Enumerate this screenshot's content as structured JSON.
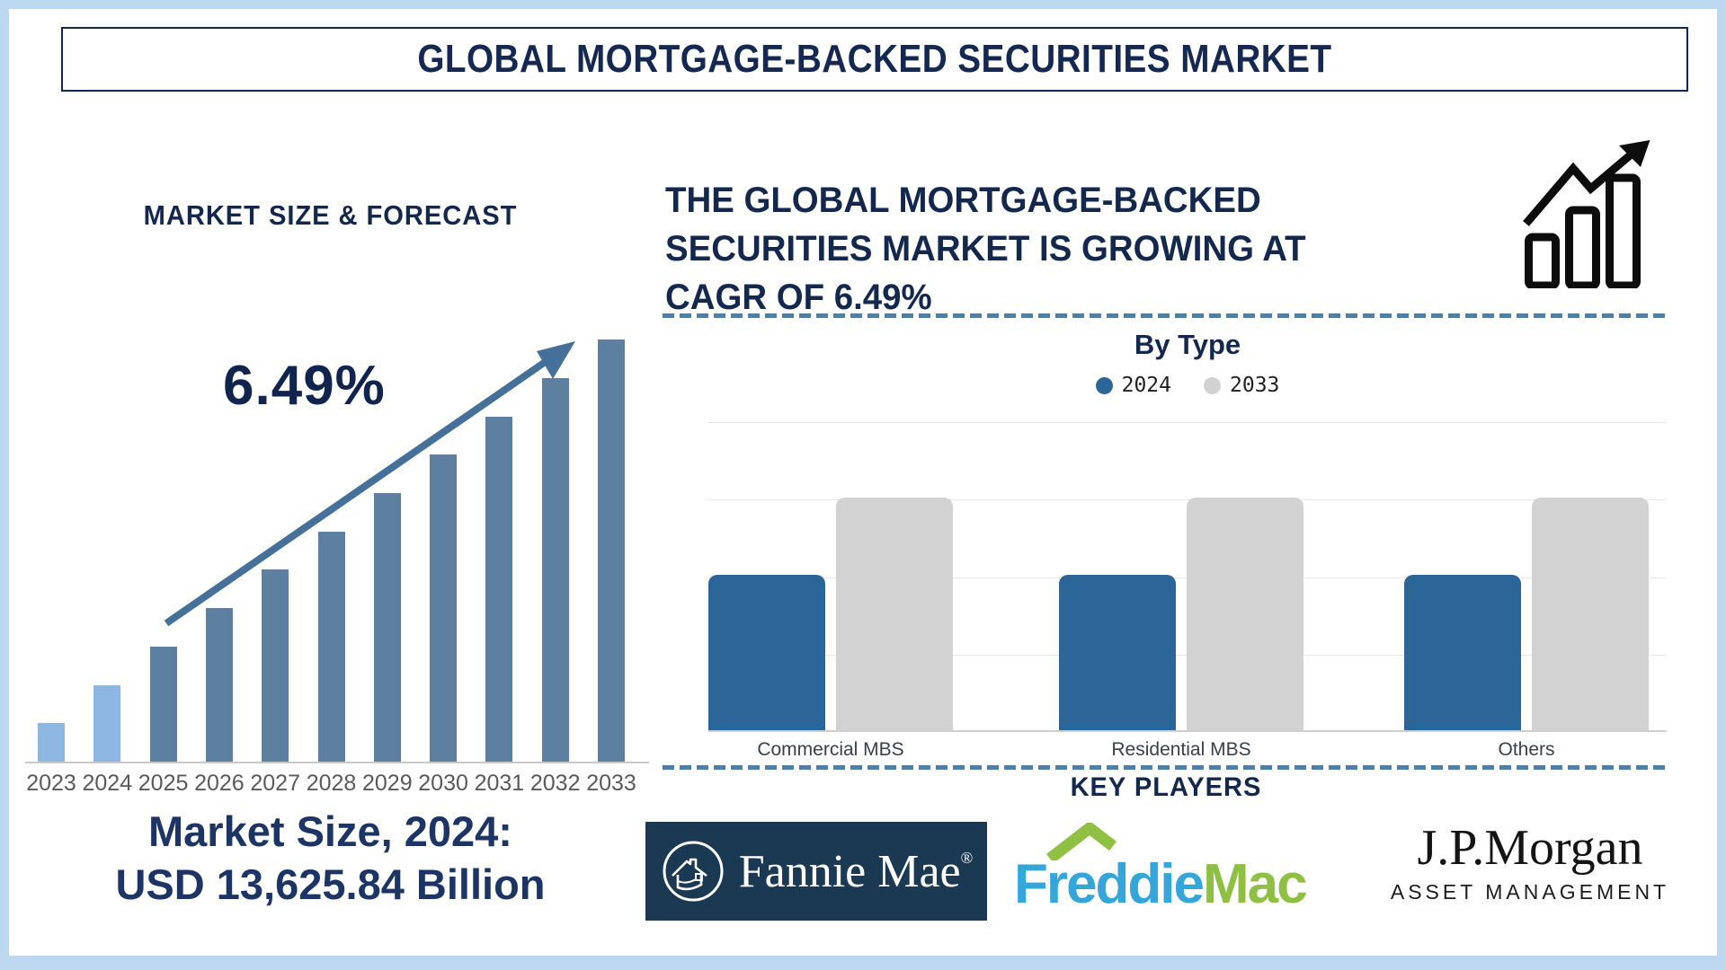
{
  "title": "GLOBAL MORTGAGE-BACKED SECURITIES MARKET",
  "left_panel": {
    "heading": "MARKET SIZE & FORECAST",
    "growth_annotation": "6.49%",
    "market_size_line1": "Market Size, 2024:",
    "market_size_line2": "USD 13,625.84 Billion"
  },
  "right_panel": {
    "headline_lines": [
      "THE GLOBAL MORTGAGE-BACKED",
      "SECURITIES MARKET IS GROWING AT",
      "CAGR OF 6.49%"
    ],
    "key_players_title": "KEY PLAYERS",
    "logos": {
      "fannie_mae": {
        "text": "Fannie Mae",
        "registered_mark": "®",
        "bg_color": "#1c3954"
      },
      "freddie_mac": {
        "word1": "Freddie",
        "word2": "Mac",
        "word1_color": "#35a6d9",
        "word2_color": "#8fc043"
      },
      "jpmorgan": {
        "name": "J.P.Morgan",
        "subtitle": "ASSET MANAGEMENT"
      }
    }
  },
  "chart_data": [
    {
      "id": "market_size_forecast",
      "type": "bar",
      "title": "MARKET SIZE & FORECAST",
      "categories": [
        "2023",
        "2024",
        "2025",
        "2026",
        "2027",
        "2028",
        "2029",
        "2030",
        "2031",
        "2032",
        "2033"
      ],
      "values_relative": [
        1,
        2,
        3,
        4,
        5,
        6,
        7,
        8,
        9,
        10,
        11
      ],
      "value_axis": "unlabeled (no tick values shown; bars rise linearly year over year)",
      "bar_colors": [
        "#8db6e2",
        "#8db6e2",
        "#5e80a0",
        "#5e80a0",
        "#5e80a0",
        "#5e80a0",
        "#5e80a0",
        "#5e80a0",
        "#5e80a0",
        "#5e80a0",
        "#5e80a0"
      ],
      "annotation": "6.49%",
      "known_point": {
        "year": "2024",
        "value": "USD 13,625.84 Billion"
      },
      "cagr_percent": 6.49,
      "trend_arrow": true,
      "grid": false,
      "legend_position": "none"
    },
    {
      "id": "by_type",
      "type": "bar",
      "title": "By Type",
      "categories": [
        "Commercial MBS",
        "Residential MBS",
        "Others"
      ],
      "series": [
        {
          "name": "2024",
          "color": "#2c6698",
          "values_relative": [
            2,
            2,
            2
          ]
        },
        {
          "name": "2033",
          "color": "#d2d2d2",
          "values_relative": [
            3,
            3,
            3
          ]
        }
      ],
      "ylim_relative": [
        0,
        4
      ],
      "value_axis": "unlabeled (gridlines only; 2033 bars reach 3 of 4 grid units, 2024 bars reach 2 of 4)",
      "grid": true,
      "legend_position": "top"
    }
  ],
  "colors": {
    "navy_text": "#14284e",
    "frame_border": "#bdd8ee",
    "trend_arrow": "#44709a",
    "dashed_divider": "#4d7fa8",
    "historical_bar": "#8db6e2",
    "forecast_bar": "#5e80a0",
    "series_2024": "#2c6698",
    "series_2033": "#d2d2d2"
  }
}
